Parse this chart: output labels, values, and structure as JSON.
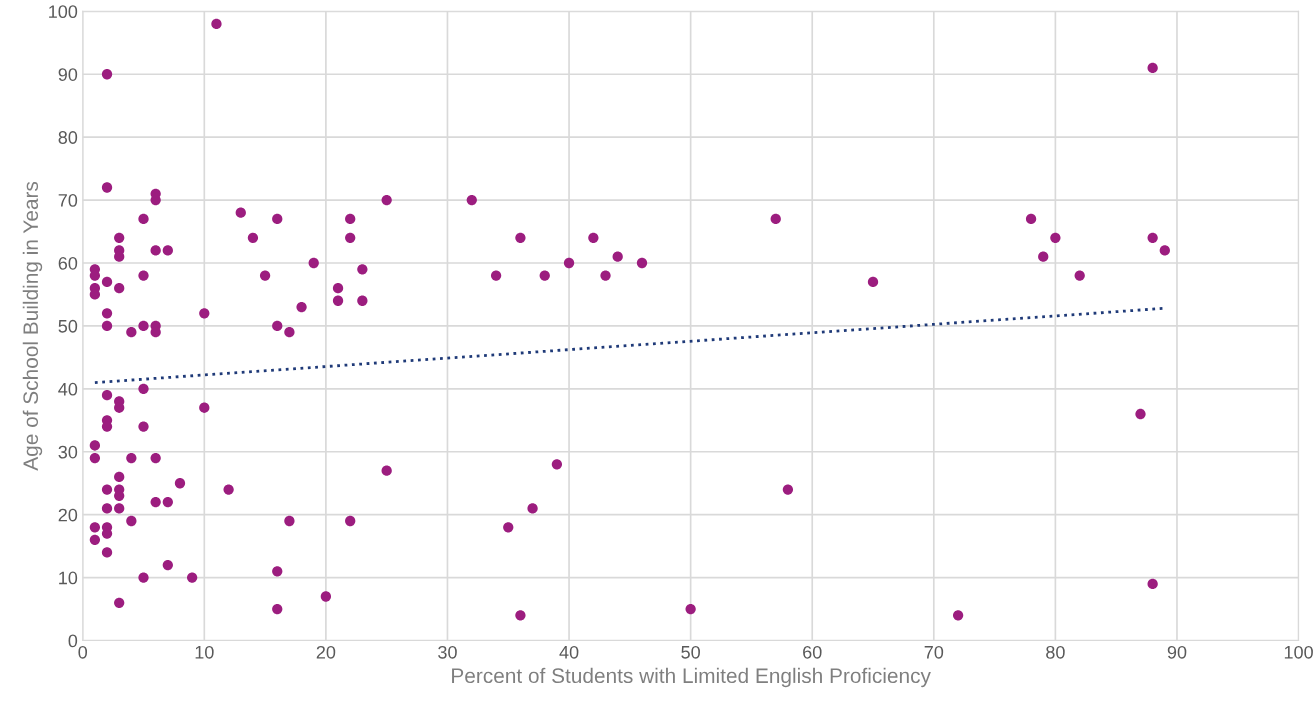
{
  "chart_data": {
    "type": "scatter",
    "xlabel": "Percent of Students with Limited English Proficiency",
    "ylabel": "Age of School Building in Years",
    "xlim": [
      0,
      100
    ],
    "xticks": [
      0,
      10,
      20,
      30,
      40,
      50,
      60,
      70,
      80,
      90,
      100
    ],
    "ylim": [
      0,
      100
    ],
    "yticks": [
      0,
      10,
      20,
      30,
      40,
      50,
      60,
      70,
      80,
      90,
      100
    ],
    "grid": true,
    "series": [
      {
        "color": "#9c1d7f",
        "marker": "circle",
        "x": [
          1,
          1,
          1,
          1,
          1,
          1,
          1,
          1,
          2,
          2,
          2,
          2,
          2,
          2,
          2,
          2,
          2,
          2,
          2,
          2,
          2,
          3,
          3,
          3,
          3,
          3,
          3,
          3,
          3,
          3,
          3,
          3,
          4,
          4,
          4,
          5,
          5,
          5,
          5,
          5,
          5,
          6,
          6,
          6,
          6,
          6,
          6,
          6,
          7,
          7,
          7,
          8,
          9,
          10,
          10,
          11,
          12,
          13,
          14,
          15,
          16,
          16,
          16,
          16,
          17,
          17,
          18,
          19,
          20,
          21,
          21,
          22,
          22,
          22,
          23,
          23,
          25,
          25,
          32,
          34,
          35,
          36,
          36,
          37,
          38,
          39,
          40,
          42,
          43,
          44,
          46,
          50,
          57,
          58,
          65,
          72,
          78,
          79,
          80,
          82,
          87,
          88,
          88,
          88,
          89
        ],
        "values": [
          59,
          58,
          56,
          55,
          31,
          29,
          18,
          16,
          90,
          72,
          57,
          52,
          50,
          39,
          35,
          34,
          24,
          21,
          18,
          17,
          14,
          64,
          62,
          61,
          56,
          38,
          37,
          26,
          24,
          23,
          21,
          6,
          49,
          29,
          19,
          67,
          58,
          50,
          40,
          34,
          10,
          71,
          70,
          62,
          50,
          49,
          29,
          22,
          62,
          22,
          12,
          25,
          10,
          52,
          37,
          98,
          24,
          68,
          64,
          58,
          67,
          50,
          11,
          5,
          49,
          19,
          53,
          60,
          7,
          56,
          54,
          67,
          64,
          19,
          59,
          54,
          70,
          27,
          70,
          58,
          18,
          64,
          4,
          21,
          58,
          28,
          60,
          64,
          58,
          61,
          60,
          5,
          67,
          24,
          57,
          4,
          67,
          61,
          64,
          58,
          36,
          91,
          64,
          9,
          62
        ]
      },
      {
        "type": "line",
        "color": "#1f3a78",
        "line_style": "dotted",
        "x": [
          1,
          89
        ],
        "values": [
          41,
          52.8
        ]
      }
    ]
  }
}
